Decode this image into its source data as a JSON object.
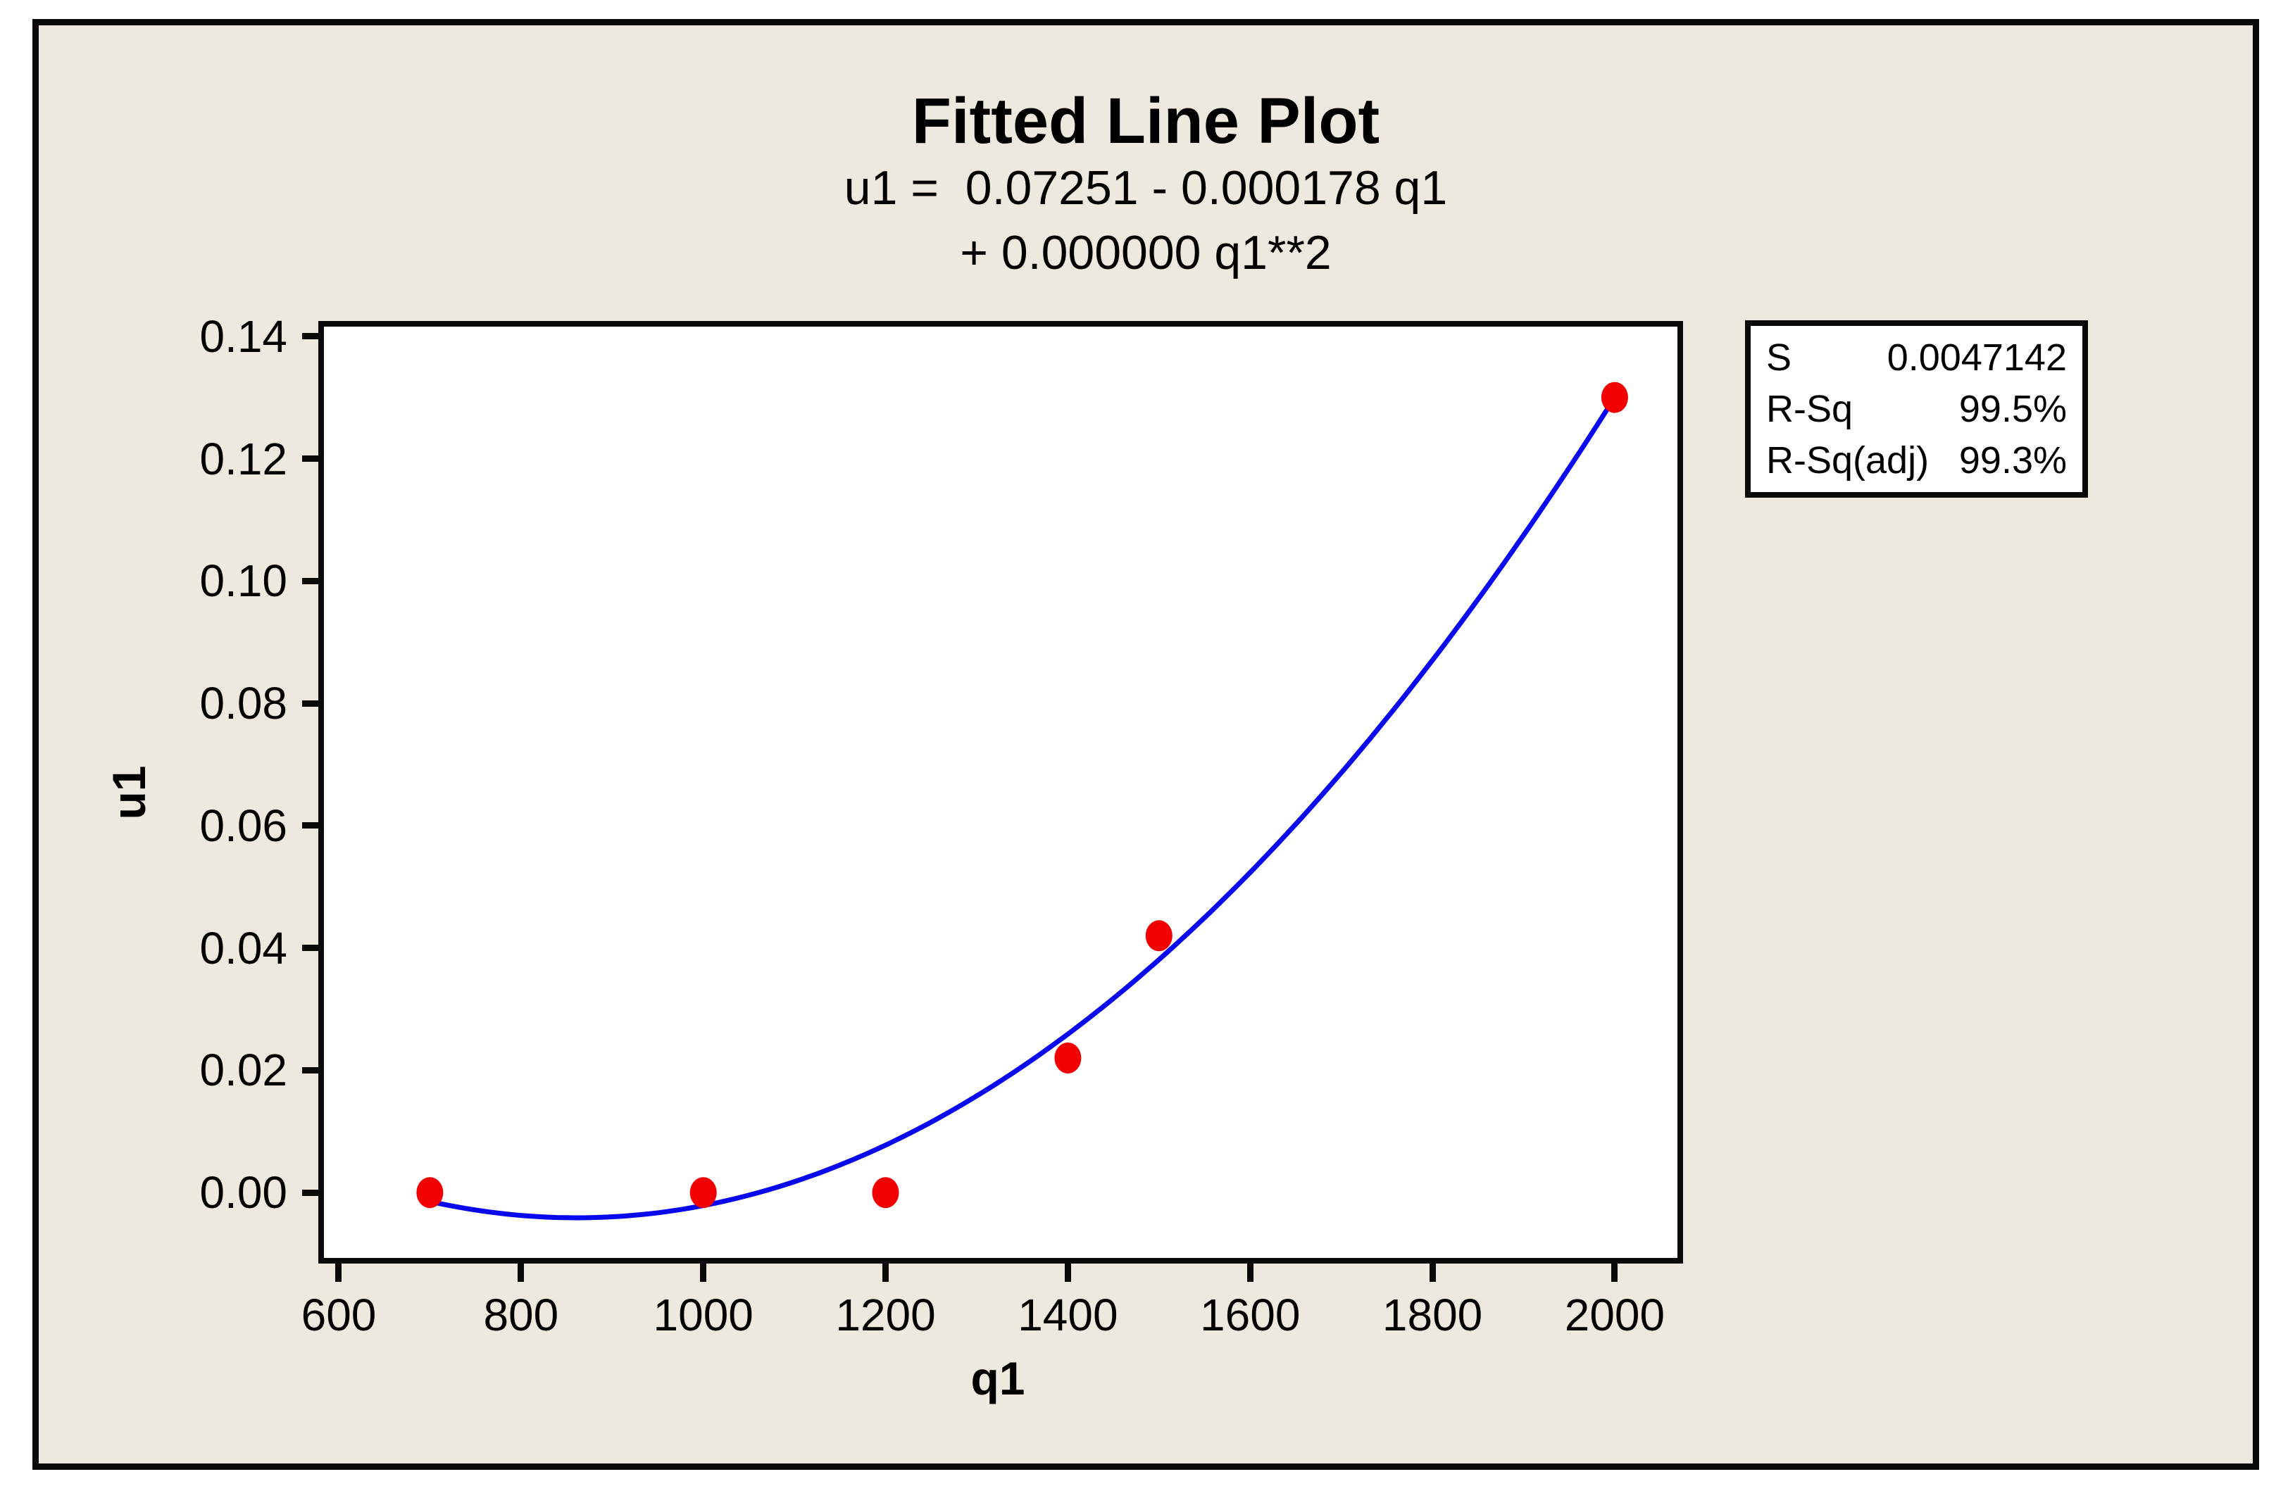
{
  "title": "Fitted Line Plot",
  "equation_lines": [
    "u1 =  0.07251 - 0.000178 q1",
    "+ 0.000000 q1**2"
  ],
  "stats_box": {
    "rows": [
      {
        "label": "S",
        "value": "0.0047142"
      },
      {
        "label": "R-Sq",
        "value": "99.5%"
      },
      {
        "label": "R-Sq(adj)",
        "value": "99.3%"
      }
    ]
  },
  "chart_data": {
    "type": "scatter",
    "title": "Fitted Line Plot",
    "subtitle": "u1 =  0.07251 - 0.000178 q1 + 0.000000 q1**2",
    "xlabel": "q1",
    "ylabel": "u1",
    "xlim": [
      577.6,
      2075.0
    ],
    "ylim": [
      -0.0116,
      0.1425
    ],
    "grid": false,
    "x_ticks": {
      "values": [
        600,
        800,
        1000,
        1200,
        1400,
        1600,
        1800,
        2000
      ],
      "labels": [
        "600",
        "800",
        "1000",
        "1200",
        "1400",
        "1600",
        "1800",
        "2000"
      ]
    },
    "y_ticks": {
      "values": [
        0.0,
        0.02,
        0.04,
        0.06,
        0.08,
        0.1,
        0.12,
        0.14
      ],
      "labels": [
        "0.00",
        "0.02",
        "0.04",
        "0.06",
        "0.08",
        "0.10",
        "0.12",
        "0.14"
      ]
    },
    "points": [
      [
        700,
        0.0
      ],
      [
        1000,
        0.0
      ],
      [
        1200,
        0.0
      ],
      [
        1400,
        0.022
      ],
      [
        1500,
        0.042
      ],
      [
        2000,
        0.13
      ]
    ],
    "fit_curve": {
      "form": "a + b*x + c*x^2",
      "a": 0.07251,
      "b": -0.000178,
      "c": 1.0337e-07,
      "x_start": 700,
      "x_end": 2000
    },
    "legend_position": "top-right",
    "colors": {
      "background": "#EDE9DE",
      "plot_background": "#ffffff",
      "frame": "#0a0a0a",
      "line": "#0808F0",
      "marker": "#F20000",
      "text": "#000000"
    }
  }
}
